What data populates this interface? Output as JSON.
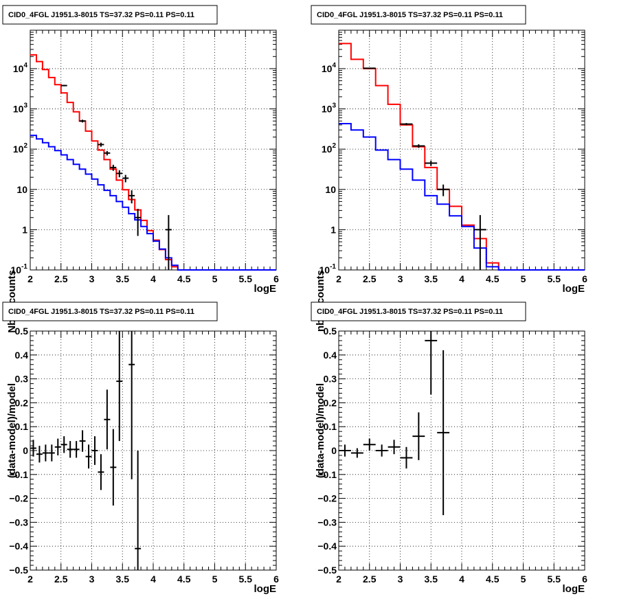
{
  "chart_data": [
    {
      "type": "line",
      "title": "CID0_4FGL J1951.3-8015 TS=37.32 PS=0.11 PS=0.11",
      "xlabel": "logE",
      "ylabel": "Nb of counts",
      "xlim": [
        2,
        6
      ],
      "ylim": [
        0.1,
        90000
      ],
      "log_y": true,
      "grid": true,
      "x_ticks": [
        "2",
        "2.5",
        "3",
        "3.5",
        "4",
        "4.5",
        "5",
        "5.5",
        "6"
      ],
      "y_ticks": [
        {
          "value": 0.1,
          "base": "10",
          "exp": "-1"
        },
        {
          "value": 1,
          "base": "1",
          "exp": ""
        },
        {
          "value": 10,
          "base": "10",
          "exp": ""
        },
        {
          "value": 100,
          "base": "10",
          "exp": "2"
        },
        {
          "value": 1000,
          "base": "10",
          "exp": "3"
        },
        {
          "value": 10000,
          "base": "10",
          "exp": "4"
        }
      ],
      "bin_edges": [
        2.0,
        2.1,
        2.2,
        2.3,
        2.4,
        2.5,
        2.6,
        2.7,
        2.8,
        2.9,
        3.0,
        3.1,
        3.2,
        3.3,
        3.4,
        3.5,
        3.6,
        3.7,
        3.8,
        3.9,
        4.0,
        4.1,
        4.2,
        4.3,
        4.4,
        4.5,
        4.6,
        4.7,
        4.8,
        4.9,
        5.0,
        5.1,
        5.2,
        5.3,
        5.4,
        5.5,
        5.6,
        5.7,
        5.8,
        5.9,
        6.0
      ],
      "series": [
        {
          "color": "#ff0000",
          "values": [
            22000,
            15000,
            9500,
            6000,
            4000,
            2500,
            1450,
            850,
            500,
            280,
            160,
            95,
            55,
            32,
            17,
            9.8,
            5.6,
            3.1,
            1.7,
            0.95,
            0.55,
            0.32,
            0.18,
            0.12,
            0.1,
            0.1,
            0.1,
            0.1,
            0.1,
            0.1,
            0.1,
            0.1,
            0.1,
            0.1,
            0.1,
            0.1,
            0.1,
            0.1,
            0.1,
            0.1
          ]
        },
        {
          "color": "#0000ff",
          "values": [
            220,
            180,
            145,
            115,
            92,
            72,
            55,
            42,
            32,
            24,
            18,
            13,
            9.5,
            7,
            5,
            3.6,
            2.5,
            1.75,
            1.2,
            0.8,
            0.52,
            0.33,
            0.2,
            0.13,
            0.1,
            0.1,
            0.1,
            0.1,
            0.1,
            0.1,
            0.1,
            0.1,
            0.1,
            0.1,
            0.1,
            0.1,
            0.1,
            0.1,
            0.1,
            0.1
          ]
        }
      ],
      "points": [
        {
          "x": 2.55,
          "y": 3800,
          "ylo": 3650,
          "yhi": 3950
        },
        {
          "x": 2.85,
          "y": 500,
          "ylo": 460,
          "yhi": 540
        },
        {
          "x": 3.15,
          "y": 130,
          "ylo": 115,
          "yhi": 145
        },
        {
          "x": 3.25,
          "y": 80,
          "ylo": 70,
          "yhi": 90
        },
        {
          "x": 3.35,
          "y": 35,
          "ylo": 29,
          "yhi": 41
        },
        {
          "x": 3.45,
          "y": 25,
          "ylo": 20,
          "yhi": 30
        },
        {
          "x": 3.55,
          "y": 19,
          "ylo": 15,
          "yhi": 23
        },
        {
          "x": 3.65,
          "y": 7,
          "ylo": 4.5,
          "yhi": 9.5
        },
        {
          "x": 3.75,
          "y": 2,
          "ylo": 0.7,
          "yhi": 3.3
        },
        {
          "x": 4.25,
          "y": 1,
          "ylo": 0.1,
          "yhi": 2.3
        }
      ]
    },
    {
      "type": "line",
      "title": "CID0_4FGL J1951.3-8015 TS=37.32 PS=0.11 PS=0.11",
      "xlabel": "logE",
      "ylabel": "nb of counts",
      "xlim": [
        2,
        6
      ],
      "ylim": [
        0.1,
        90000
      ],
      "log_y": true,
      "grid": true,
      "x_ticks": [
        "2",
        "2.5",
        "3",
        "3.5",
        "4",
        "4.5",
        "5",
        "5.5",
        "6"
      ],
      "y_ticks": [
        {
          "value": 0.1,
          "base": "10",
          "exp": "-1"
        },
        {
          "value": 1,
          "base": "1",
          "exp": ""
        },
        {
          "value": 10,
          "base": "10",
          "exp": ""
        },
        {
          "value": 100,
          "base": "10",
          "exp": "2"
        },
        {
          "value": 1000,
          "base": "10",
          "exp": "3"
        },
        {
          "value": 10000,
          "base": "10",
          "exp": "4"
        }
      ],
      "bin_edges": [
        2.0,
        2.2,
        2.4,
        2.6,
        2.8,
        3.0,
        3.2,
        3.4,
        3.6,
        3.8,
        4.0,
        4.2,
        4.4,
        4.6,
        4.8,
        5.0,
        5.2,
        5.4,
        5.6,
        5.8,
        6.0
      ],
      "series": [
        {
          "color": "#ff0000",
          "values": [
            42000,
            17000,
            10000,
            3800,
            1300,
            400,
            115,
            35,
            10,
            3.8,
            1.3,
            0.6,
            0.15,
            0.1,
            0.1,
            0.1,
            0.1,
            0.1,
            0.1,
            0.1
          ]
        },
        {
          "color": "#0000ff",
          "values": [
            430,
            300,
            200,
            95,
            55,
            32,
            17,
            7,
            4.3,
            2.2,
            1.2,
            0.35,
            0.12,
            0.1,
            0.1,
            0.1,
            0.1,
            0.1,
            0.1,
            0.1
          ]
        }
      ],
      "points": [
        {
          "x": 2.5,
          "y": 10200,
          "ylo": 9900,
          "yhi": 10500
        },
        {
          "x": 3.1,
          "y": 420,
          "ylo": 395,
          "yhi": 445
        },
        {
          "x": 3.3,
          "y": 120,
          "ylo": 108,
          "yhi": 132
        },
        {
          "x": 3.5,
          "y": 45,
          "ylo": 38,
          "yhi": 52
        },
        {
          "x": 3.7,
          "y": 10,
          "ylo": 6.8,
          "yhi": 13.2
        },
        {
          "x": 4.3,
          "y": 1,
          "ylo": 0.1,
          "yhi": 2.3
        }
      ]
    },
    {
      "type": "scatter",
      "title": "CID0_4FGL J1951.3-8015 TS=37.32 PS=0.11 PS=0.11",
      "xlabel": "logE",
      "ylabel": "(data-model)/model",
      "xlim": [
        2,
        6
      ],
      "ylim": [
        -0.5,
        0.5
      ],
      "grid": true,
      "x_ticks": [
        "2",
        "2.5",
        "3",
        "3.5",
        "4",
        "4.5",
        "5",
        "5.5",
        "6"
      ],
      "y_ticks": [
        "−0.5",
        "−0.4",
        "−0.3",
        "−0.2",
        "−0.1",
        "0",
        "0.1",
        "0.2",
        "0.3",
        "0.4",
        "0.5"
      ],
      "points": [
        {
          "x": 2.05,
          "y": 0.01,
          "yerr": 0.035
        },
        {
          "x": 2.15,
          "y": -0.015,
          "yerr": 0.035
        },
        {
          "x": 2.25,
          "y": -0.01,
          "yerr": 0.035
        },
        {
          "x": 2.35,
          "y": -0.01,
          "yerr": 0.035
        },
        {
          "x": 2.45,
          "y": 0.015,
          "yerr": 0.035
        },
        {
          "x": 2.55,
          "y": 0.025,
          "yerr": 0.035
        },
        {
          "x": 2.65,
          "y": 0.005,
          "yerr": 0.035
        },
        {
          "x": 2.75,
          "y": 0.005,
          "yerr": 0.035
        },
        {
          "x": 2.85,
          "y": 0.04,
          "yerr": 0.045
        },
        {
          "x": 2.95,
          "y": -0.025,
          "yerr": 0.05
        },
        {
          "x": 3.05,
          "y": 0.0,
          "yerr": 0.06
        },
        {
          "x": 3.15,
          "y": -0.09,
          "yerr": 0.075
        },
        {
          "x": 3.25,
          "y": 0.13,
          "yerr": 0.125
        },
        {
          "x": 3.35,
          "y": -0.07,
          "yerr": 0.16
        },
        {
          "x": 3.45,
          "y": 0.29,
          "yerr": 0.25
        },
        {
          "x": 3.65,
          "y": 0.36,
          "yerr": 0.48
        },
        {
          "x": 3.75,
          "y": -0.41,
          "yerr": 0.41
        }
      ]
    },
    {
      "type": "scatter",
      "title": "CID0_4FGL J1951.3-8015 TS=37.32 PS=0.11 PS=0.11",
      "xlabel": "logE",
      "ylabel": "(data-model)/model",
      "xlim": [
        2,
        6
      ],
      "ylim": [
        -0.5,
        0.5
      ],
      "grid": true,
      "x_ticks": [
        "2",
        "2.5",
        "3",
        "3.5",
        "4",
        "4.5",
        "5",
        "5.5",
        "6"
      ],
      "y_ticks": [
        "−0.5",
        "−0.4",
        "−0.3",
        "−0.2",
        "−0.1",
        "0",
        "0.1",
        "0.2",
        "0.3",
        "0.4",
        "0.5"
      ],
      "points": [
        {
          "x": 2.1,
          "y": 0.0,
          "yerr": 0.025
        },
        {
          "x": 2.3,
          "y": -0.01,
          "yerr": 0.02
        },
        {
          "x": 2.5,
          "y": 0.025,
          "yerr": 0.025
        },
        {
          "x": 2.7,
          "y": 0.0,
          "yerr": 0.025
        },
        {
          "x": 2.9,
          "y": 0.015,
          "yerr": 0.03
        },
        {
          "x": 3.1,
          "y": -0.03,
          "yerr": 0.045
        },
        {
          "x": 3.3,
          "y": 0.06,
          "yerr": 0.1
        },
        {
          "x": 3.5,
          "y": 0.46,
          "yerr": 0.225
        },
        {
          "x": 3.7,
          "y": 0.075,
          "yerr": 0.345
        }
      ]
    }
  ]
}
